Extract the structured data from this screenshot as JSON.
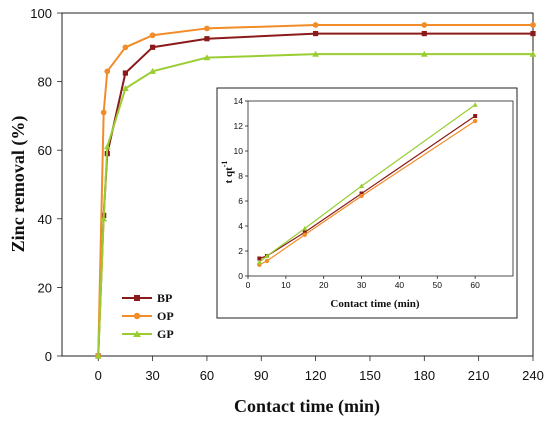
{
  "chart_data": [
    {
      "type": "line",
      "xlabel": "Contact time (min)",
      "ylabel": "Zinc removal (%)",
      "xlim": [
        -20,
        240
      ],
      "ylim": [
        0,
        100
      ],
      "xticks": [
        0,
        30,
        60,
        90,
        120,
        150,
        180,
        210,
        240
      ],
      "yticks": [
        0,
        20,
        40,
        60,
        80,
        100
      ],
      "grid": false,
      "legend_position": "bottom-left",
      "series": [
        {
          "name": "BP",
          "color": "#8b1a1a",
          "marker": "square",
          "x": [
            0,
            3,
            5,
            15,
            30,
            60,
            120,
            180,
            240
          ],
          "y": [
            0,
            41,
            59,
            82.5,
            90,
            92.5,
            94,
            94,
            94
          ]
        },
        {
          "name": "OP",
          "color": "#f28c28",
          "marker": "circle",
          "x": [
            0,
            3,
            5,
            15,
            30,
            60,
            120,
            180,
            240
          ],
          "y": [
            0,
            71,
            83,
            90,
            93.5,
            95.5,
            96.5,
            96.5,
            96.5
          ]
        },
        {
          "name": "GP",
          "color": "#9acd32",
          "marker": "triangle",
          "x": [
            0,
            3,
            5,
            15,
            30,
            60,
            120,
            180,
            240
          ],
          "y": [
            0,
            40,
            61,
            78,
            83,
            87,
            88,
            88,
            88
          ]
        }
      ]
    },
    {
      "type": "line",
      "xlabel": "Contact time (min)",
      "ylabel": "t qt",
      "ylabel_superscript": "-1",
      "xlim": [
        0,
        70
      ],
      "ylim": [
        0,
        14
      ],
      "xticks": [
        0,
        10,
        20,
        30,
        40,
        50,
        60
      ],
      "yticks": [
        0,
        2,
        4,
        6,
        8,
        10,
        12,
        14
      ],
      "grid": false,
      "series": [
        {
          "name": "BP",
          "color": "#8b1a1a",
          "marker": "square",
          "x": [
            3,
            5,
            15,
            30,
            60
          ],
          "y": [
            1.4,
            1.6,
            3.5,
            6.6,
            12.8
          ]
        },
        {
          "name": "OP",
          "color": "#f28c28",
          "marker": "circle",
          "x": [
            3,
            5,
            15,
            30,
            60
          ],
          "y": [
            0.9,
            1.2,
            3.3,
            6.4,
            12.4
          ]
        },
        {
          "name": "GP",
          "color": "#9acd32",
          "marker": "triangle",
          "x": [
            3,
            5,
            15,
            30,
            60
          ],
          "y": [
            1.1,
            1.6,
            3.8,
            7.2,
            13.7
          ]
        }
      ]
    }
  ]
}
